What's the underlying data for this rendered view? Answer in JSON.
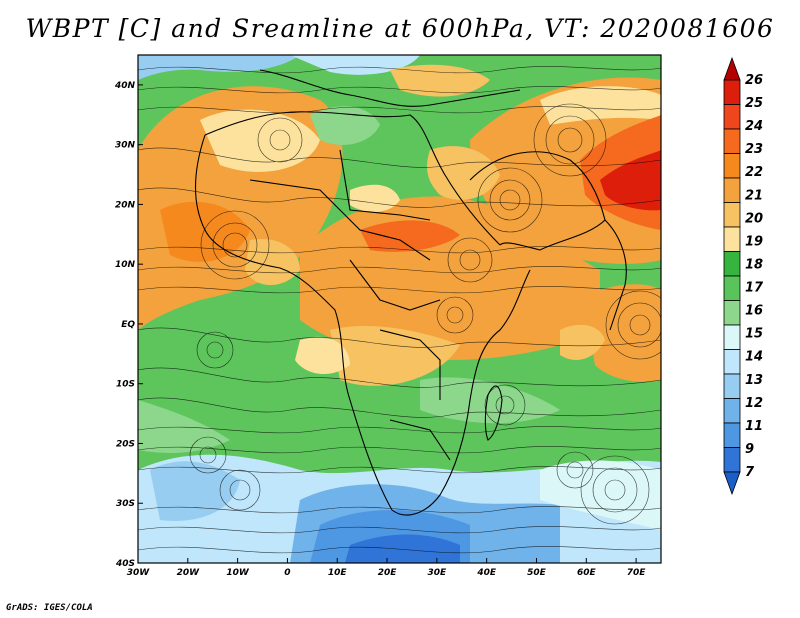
{
  "title": "WBPT [C] and Sreamline at 600hPa, VT: 2020081606",
  "credit": "GrADS: IGES/COLA",
  "map": {
    "lon_ticks": [
      "30W",
      "20W",
      "10W",
      "0",
      "10E",
      "20E",
      "30E",
      "40E",
      "50E",
      "60E",
      "70E"
    ],
    "lat_ticks": [
      "40N",
      "30N",
      "20N",
      "10N",
      "EQ",
      "10S",
      "20S",
      "30S",
      "40S"
    ],
    "lon_range": [
      -30,
      75
    ],
    "lat_range": [
      -40,
      45
    ]
  },
  "colorbar": {
    "labels": [
      "26",
      "25",
      "24",
      "23",
      "22",
      "21",
      "20",
      "19",
      "18",
      "17",
      "16",
      "15",
      "14",
      "13",
      "12",
      "11",
      "9",
      "7"
    ],
    "colors": [
      "#b40000",
      "#dc1e0a",
      "#f0461e",
      "#f56a1e",
      "#f5891e",
      "#f3a23d",
      "#f7c261",
      "#fde29e",
      "#35b540",
      "#58c45a",
      "#8cd78c",
      "#dcf7f7",
      "#bfe6fb",
      "#98cdf2",
      "#70b2ea",
      "#4d97e3",
      "#2f74d6",
      "#1c5ec8"
    ]
  },
  "legend_meaning": {
    "variable": "WBPT",
    "units": "C",
    "level": "600hPa"
  },
  "colors": {
    "background": "#ffffff",
    "ink": "#000000",
    "warm_orange": "#ef9830",
    "cool_blue": "#3c80dc",
    "green": "#36b844"
  }
}
